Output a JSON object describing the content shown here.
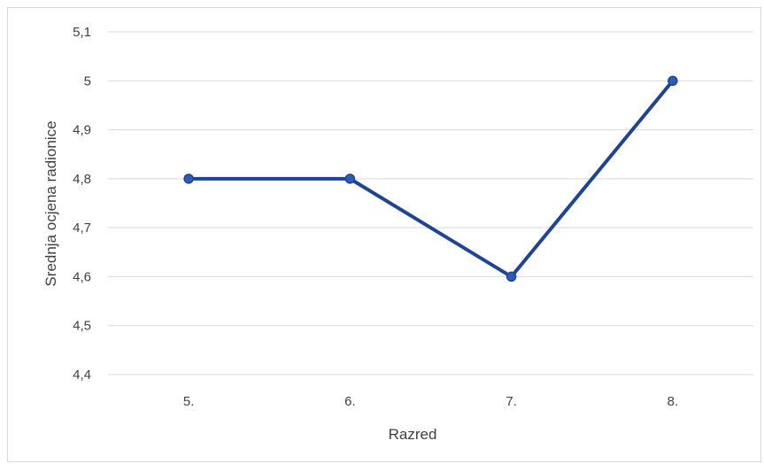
{
  "chart_data": {
    "type": "line",
    "title": "",
    "xlabel": "Razred",
    "ylabel": "Srednja ocjena radionice",
    "categories": [
      "5.",
      "6.",
      "7.",
      "8."
    ],
    "series": [
      {
        "values": [
          4.8,
          4.8,
          4.6,
          5.0
        ],
        "color": "#1f4496"
      }
    ],
    "ylim": [
      4.4,
      5.1
    ],
    "yticks": [
      "4,4",
      "4,5",
      "4,6",
      "4,7",
      "4,8",
      "4,9",
      "5",
      "5,1"
    ],
    "ytick_values": [
      4.4,
      4.5,
      4.6,
      4.7,
      4.8,
      4.9,
      5.0,
      5.1
    ],
    "grid": true,
    "legend": "none",
    "gridline_color": "#d9d9d9",
    "marker": "circle"
  }
}
